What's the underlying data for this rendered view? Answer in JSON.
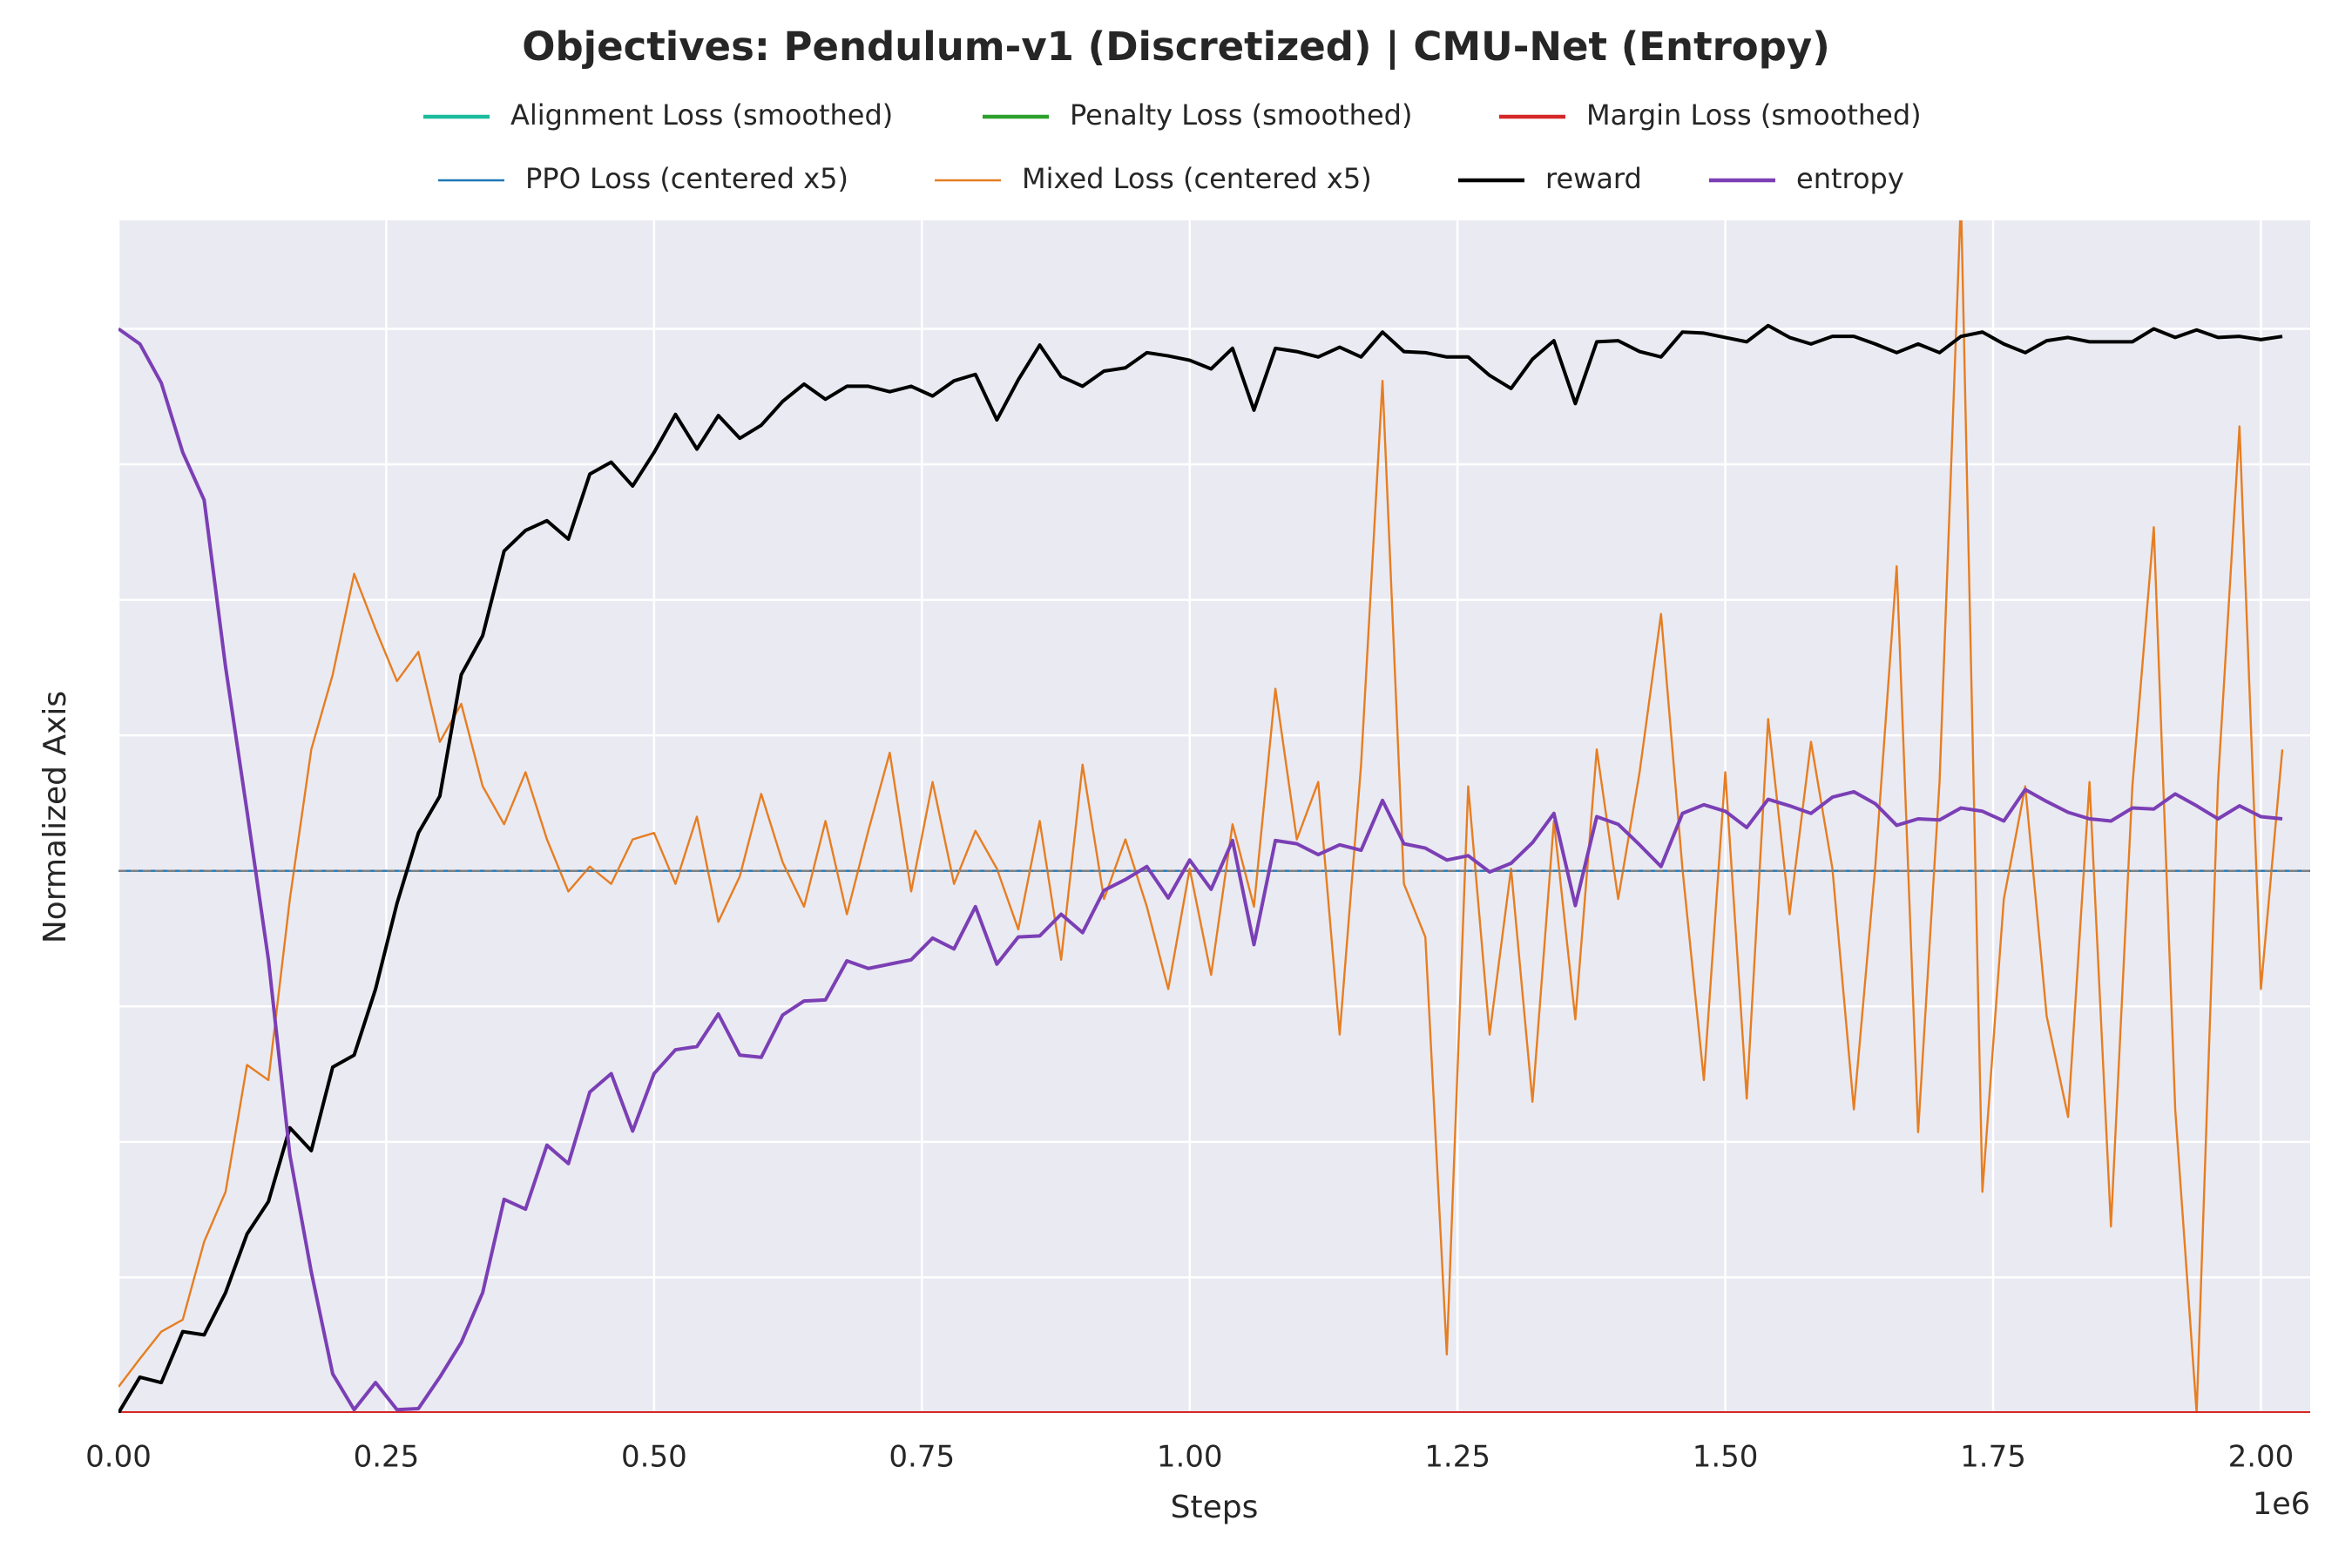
{
  "chart_data": {
    "type": "line",
    "title": "Objectives: Pendulum-v1 (Discretized) | CMU-Net (Entropy)",
    "x_label": "Steps",
    "y_label": "Normalized Axis",
    "x_offset_label": "1e6",
    "xlim": [
      0,
      2.046
    ],
    "ylim": [
      0,
      1.1
    ],
    "xticks": [
      {
        "value": 0,
        "label": "0.00"
      },
      {
        "value": 0.25,
        "label": "0.25"
      },
      {
        "value": 0.5,
        "label": "0.50"
      },
      {
        "value": 0.75,
        "label": "0.75"
      },
      {
        "value": 1,
        "label": "1.00"
      },
      {
        "value": 1.25,
        "label": "1.25"
      },
      {
        "value": 1.5,
        "label": "1.50"
      },
      {
        "value": 1.75,
        "label": "1.75"
      },
      {
        "value": 2,
        "label": "2.00"
      }
    ],
    "yticks": [
      0,
      0.125,
      0.25,
      0.375,
      0.5,
      0.625,
      0.75,
      0.875,
      1.0
    ],
    "show_ytick_labels": false,
    "grid": true,
    "reference_line": 0.5,
    "legend": "top",
    "x": [
      0,
      0.02,
      0.04,
      0.06,
      0.08,
      0.1,
      0.12,
      0.14,
      0.16,
      0.18,
      0.2,
      0.22,
      0.24,
      0.26,
      0.28,
      0.3,
      0.32,
      0.34,
      0.36,
      0.38,
      0.4,
      0.42,
      0.44,
      0.46,
      0.48,
      0.5,
      0.52,
      0.54,
      0.56,
      0.58,
      0.6,
      0.62,
      0.64,
      0.66,
      0.68,
      0.7,
      0.72,
      0.74,
      0.76,
      0.78,
      0.8,
      0.82,
      0.84,
      0.86,
      0.88,
      0.9,
      0.92,
      0.94,
      0.96,
      0.98,
      1.0,
      1.02,
      1.04,
      1.06,
      1.08,
      1.1,
      1.12,
      1.14,
      1.16,
      1.18,
      1.2,
      1.22,
      1.24,
      1.26,
      1.28,
      1.3,
      1.32,
      1.34,
      1.36,
      1.38,
      1.4,
      1.42,
      1.44,
      1.46,
      1.48,
      1.5,
      1.52,
      1.54,
      1.56,
      1.58,
      1.6,
      1.62,
      1.64,
      1.66,
      1.68,
      1.7,
      1.72,
      1.74,
      1.76,
      1.78,
      1.8,
      1.82,
      1.84,
      1.86,
      1.88,
      1.9,
      1.92,
      1.94,
      1.96,
      1.98,
      2.0,
      2.02
    ],
    "series": [
      {
        "name": "Alignment Loss (smoothed)",
        "color": "#1abc9c",
        "width": "thick",
        "x": [
          0,
          2.046
        ],
        "values": [
          0,
          0
        ]
      },
      {
        "name": "Penalty Loss (smoothed)",
        "color": "#2ca02c",
        "width": "thick",
        "x": [
          0,
          2.046
        ],
        "values": [
          0,
          0
        ]
      },
      {
        "name": "Margin Loss (smoothed)",
        "color": "#d62728",
        "width": "thick",
        "x": [
          0,
          2.046
        ],
        "values": [
          0,
          0
        ]
      },
      {
        "name": "PPO Loss (centered x5)",
        "color": "#1f77b4",
        "width": "thin",
        "x": [
          0,
          2.046
        ],
        "values": [
          0.5,
          0.5
        ]
      },
      {
        "name": "Mixed Loss (centered x5)",
        "color": "#e67e22",
        "width": "thin",
        "values": [
          0.024,
          0.05,
          0.075,
          0.086,
          0.158,
          0.204,
          0.321,
          0.307,
          0.474,
          0.612,
          0.681,
          0.774,
          0.723,
          0.675,
          0.702,
          0.619,
          0.654,
          0.578,
          0.543,
          0.591,
          0.529,
          0.481,
          0.504,
          0.488,
          0.529,
          0.535,
          0.488,
          0.55,
          0.453,
          0.495,
          0.571,
          0.508,
          0.467,
          0.546,
          0.46,
          0.537,
          0.609,
          0.481,
          0.582,
          0.488,
          0.537,
          0.502,
          0.446,
          0.546,
          0.418,
          0.598,
          0.474,
          0.529,
          0.467,
          0.391,
          0.502,
          0.404,
          0.543,
          0.467,
          0.668,
          0.529,
          0.582,
          0.349,
          0.598,
          0.952,
          0.488,
          0.439,
          0.054,
          0.578,
          0.349,
          0.502,
          0.287,
          0.546,
          0.363,
          0.612,
          0.474,
          0.591,
          0.737,
          0.502,
          0.307,
          0.591,
          0.29,
          0.64,
          0.46,
          0.619,
          0.502,
          0.28,
          0.504,
          0.781,
          0.259,
          0.582,
          1.12,
          0.204,
          0.474,
          0.578,
          0.366,
          0.273,
          0.582,
          0.172,
          0.578,
          0.817,
          0.28,
          0,
          0.582,
          0.91,
          0.391,
          0.612
        ]
      },
      {
        "name": "reward",
        "color": "#000000",
        "width": "thick",
        "values": [
          0,
          0.033,
          0.028,
          0.075,
          0.072,
          0.111,
          0.165,
          0.195,
          0.263,
          0.242,
          0.319,
          0.33,
          0.391,
          0.47,
          0.535,
          0.569,
          0.681,
          0.717,
          0.795,
          0.814,
          0.823,
          0.806,
          0.866,
          0.877,
          0.855,
          0.886,
          0.921,
          0.889,
          0.92,
          0.899,
          0.911,
          0.933,
          0.949,
          0.935,
          0.947,
          0.947,
          0.942,
          0.947,
          0.938,
          0.952,
          0.958,
          0.916,
          0.953,
          0.985,
          0.956,
          0.947,
          0.961,
          0.964,
          0.978,
          0.975,
          0.971,
          0.963,
          0.982,
          0.925,
          0.982,
          0.979,
          0.974,
          0.983,
          0.974,
          0.997,
          0.979,
          0.978,
          0.974,
          0.974,
          0.957,
          0.945,
          0.972,
          0.989,
          0.931,
          0.988,
          0.989,
          0.979,
          0.974,
          0.997,
          0.996,
          0.992,
          0.988,
          1.003,
          0.992,
          0.986,
          0.993,
          0.993,
          0.986,
          0.978,
          0.986,
          0.978,
          0.993,
          0.997,
          0.986,
          0.978,
          0.989,
          0.992,
          0.988,
          0.988,
          0.988,
          1.0,
          0.992,
          0.999,
          0.992,
          0.993,
          0.99,
          0.993
        ]
      },
      {
        "name": "entropy",
        "color": "#7b3fb5",
        "width": "thick",
        "values": [
          1.0,
          0.986,
          0.95,
          0.886,
          0.842,
          0.688,
          0.555,
          0.418,
          0.238,
          0.13,
          0.036,
          0.003,
          0.028,
          0.003,
          0.004,
          0.033,
          0.065,
          0.111,
          0.197,
          0.188,
          0.247,
          0.23,
          0.296,
          0.313,
          0.26,
          0.313,
          0.335,
          0.338,
          0.368,
          0.33,
          0.328,
          0.367,
          0.38,
          0.381,
          0.417,
          0.41,
          0.414,
          0.418,
          0.438,
          0.428,
          0.467,
          0.414,
          0.439,
          0.44,
          0.46,
          0.443,
          0.482,
          0.492,
          0.504,
          0.475,
          0.51,
          0.483,
          0.528,
          0.432,
          0.528,
          0.525,
          0.515,
          0.524,
          0.519,
          0.565,
          0.525,
          0.521,
          0.51,
          0.514,
          0.499,
          0.507,
          0.526,
          0.553,
          0.468,
          0.55,
          0.543,
          0.524,
          0.504,
          0.553,
          0.561,
          0.555,
          0.54,
          0.566,
          0.56,
          0.553,
          0.568,
          0.573,
          0.562,
          0.542,
          0.548,
          0.547,
          0.558,
          0.555,
          0.546,
          0.575,
          0.564,
          0.554,
          0.548,
          0.546,
          0.558,
          0.557,
          0.571,
          0.56,
          0.548,
          0.56,
          0.55,
          0.548
        ]
      }
    ]
  }
}
